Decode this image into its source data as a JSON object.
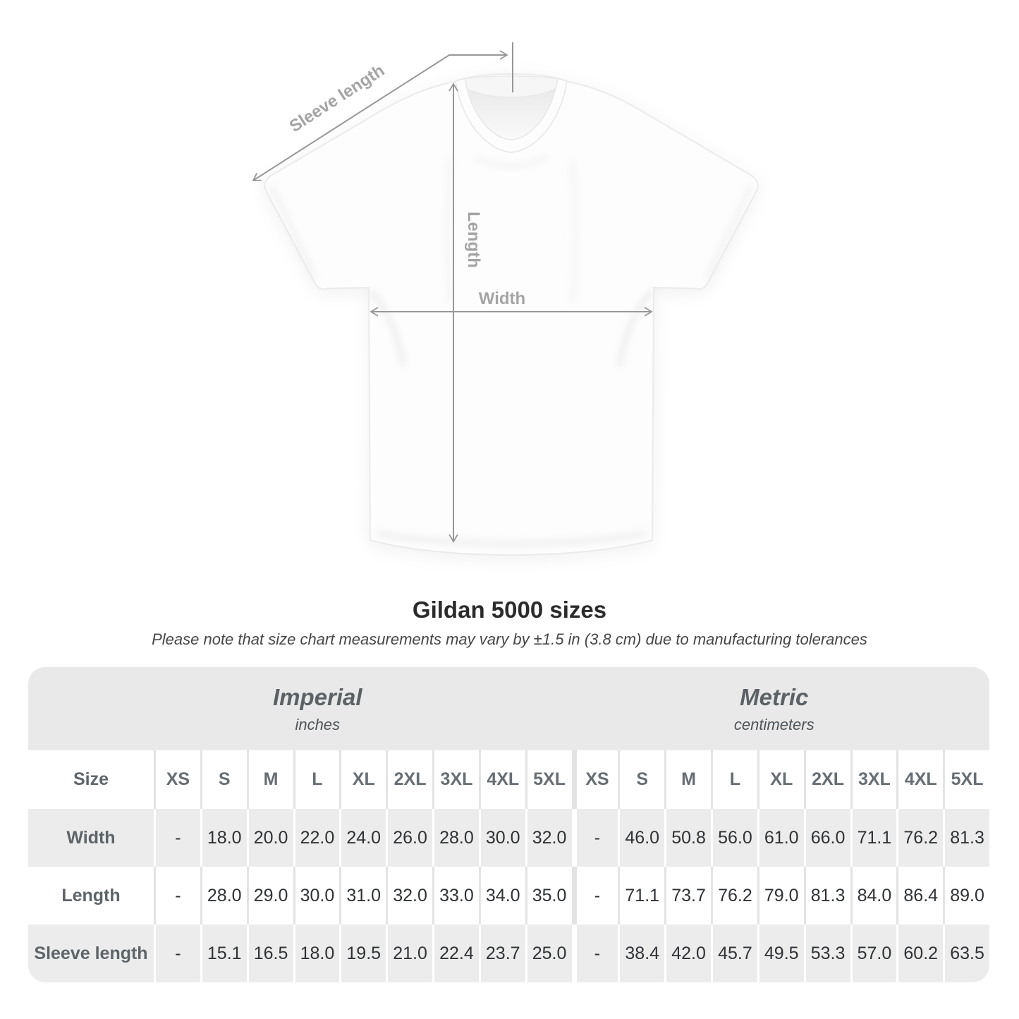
{
  "diagram": {
    "sleeve_length_label": "Sleeve length",
    "length_label": "Length",
    "width_label": "Width"
  },
  "title": "Gildan 5000 sizes",
  "subtitle": "Please note that size chart measurements may vary by ±1.5 in (3.8 cm) due to manufacturing tolerances",
  "table": {
    "size_header_label": "Size",
    "sections": [
      {
        "name": "Imperial",
        "unit": "inches"
      },
      {
        "name": "Metric",
        "unit": "centimeters"
      }
    ],
    "sizes": [
      "XS",
      "S",
      "M",
      "L",
      "XL",
      "2XL",
      "3XL",
      "4XL",
      "5XL"
    ],
    "rows": [
      {
        "label": "Width",
        "imperial": [
          "-",
          "18.0",
          "20.0",
          "22.0",
          "24.0",
          "26.0",
          "28.0",
          "30.0",
          "32.0"
        ],
        "metric": [
          "-",
          "46.0",
          "50.8",
          "56.0",
          "61.0",
          "66.0",
          "71.1",
          "76.2",
          "81.3"
        ]
      },
      {
        "label": "Length",
        "imperial": [
          "-",
          "28.0",
          "29.0",
          "30.0",
          "31.0",
          "32.0",
          "33.0",
          "34.0",
          "35.0"
        ],
        "metric": [
          "-",
          "71.1",
          "73.7",
          "76.2",
          "79.0",
          "81.3",
          "84.0",
          "86.4",
          "89.0"
        ]
      },
      {
        "label": "Sleeve length",
        "imperial": [
          "-",
          "15.1",
          "16.5",
          "18.0",
          "19.5",
          "21.0",
          "22.4",
          "23.7",
          "25.0"
        ],
        "metric": [
          "-",
          "38.4",
          "42.0",
          "45.7",
          "49.5",
          "53.3",
          "57.0",
          "60.2",
          "63.5"
        ]
      }
    ]
  },
  "colors": {
    "annotation_line": "#979797",
    "annotation_label": "#a4a4a4",
    "band_background": "#e9e9e9",
    "stripe_background": "#ececec",
    "title_text": "#2b2b2b",
    "header_text": "#676d72",
    "value_text": "#2f3235"
  }
}
